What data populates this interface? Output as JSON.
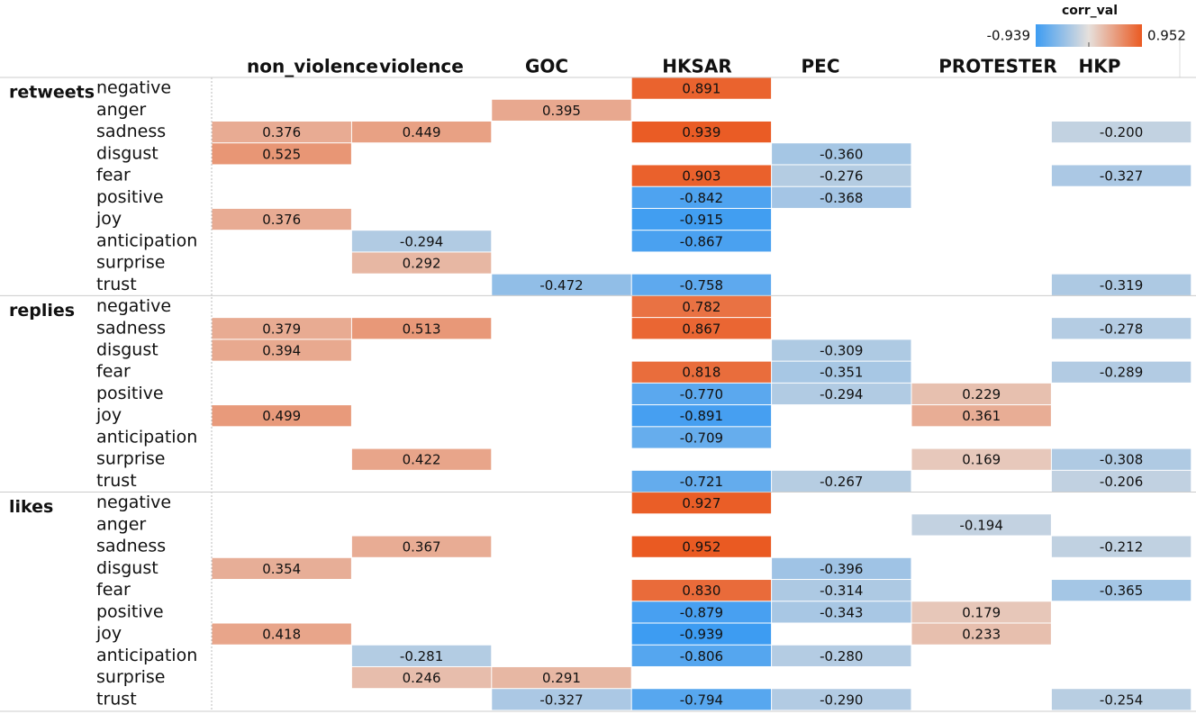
{
  "chart_data": {
    "type": "heatmap",
    "legend_title": "corr_val",
    "color_range": [
      -0.939,
      0.952
    ],
    "colormap": [
      "#3d9cf2",
      "#e6e0dc",
      "#ea5a22"
    ],
    "columns": [
      "non_violence",
      "violence",
      "GOC",
      "HKSAR",
      "PEC",
      "PROTESTER",
      "HKP"
    ],
    "groups": [
      {
        "name": "retweets",
        "rows": [
          {
            "label": "negative",
            "values": [
              null,
              null,
              null,
              0.891,
              null,
              null,
              null
            ],
            "value_labels": [
              null,
              null,
              null,
              "0.891",
              null,
              null,
              null
            ]
          },
          {
            "label": "anger",
            "values": [
              null,
              null,
              0.395,
              null,
              null,
              null,
              null
            ],
            "value_labels": [
              null,
              null,
              "0.395",
              null,
              null,
              null,
              null
            ]
          },
          {
            "label": "sadness",
            "values": [
              0.376,
              0.449,
              null,
              0.939,
              null,
              null,
              -0.2
            ],
            "value_labels": [
              "0.376",
              "0.449",
              null,
              "0.939",
              null,
              null,
              "-0.200"
            ]
          },
          {
            "label": "disgust",
            "values": [
              0.525,
              null,
              null,
              null,
              -0.36,
              null,
              null
            ],
            "value_labels": [
              "0.525",
              null,
              null,
              null,
              "-0.360",
              null,
              null
            ]
          },
          {
            "label": "fear",
            "values": [
              null,
              null,
              null,
              0.903,
              -0.276,
              null,
              -0.327
            ],
            "value_labels": [
              null,
              null,
              null,
              "0.903",
              "-0.276",
              null,
              "-0.327"
            ]
          },
          {
            "label": "positive",
            "values": [
              null,
              null,
              null,
              -0.842,
              -0.368,
              null,
              null
            ],
            "value_labels": [
              null,
              null,
              null,
              "-0.842",
              "-0.368",
              null,
              null
            ]
          },
          {
            "label": "joy",
            "values": [
              0.376,
              null,
              null,
              -0.915,
              null,
              null,
              null
            ],
            "value_labels": [
              "0.376",
              null,
              null,
              "-0.915",
              null,
              null,
              null
            ]
          },
          {
            "label": "anticipation",
            "values": [
              null,
              -0.294,
              null,
              -0.867,
              null,
              null,
              null
            ],
            "value_labels": [
              null,
              "-0.294",
              null,
              "-0.867",
              null,
              null,
              null
            ]
          },
          {
            "label": "surprise",
            "values": [
              null,
              0.292,
              null,
              null,
              null,
              null,
              null
            ],
            "value_labels": [
              null,
              "0.292",
              null,
              null,
              null,
              null,
              null
            ]
          },
          {
            "label": "trust",
            "values": [
              null,
              null,
              -0.472,
              -0.758,
              null,
              null,
              -0.319
            ],
            "value_labels": [
              null,
              null,
              "-0.472",
              "-0.758",
              null,
              null,
              "-0.319"
            ]
          }
        ]
      },
      {
        "name": "replies",
        "rows": [
          {
            "label": "negative",
            "values": [
              null,
              null,
              null,
              0.782,
              null,
              null,
              null
            ],
            "value_labels": [
              null,
              null,
              null,
              "0.782",
              null,
              null,
              null
            ]
          },
          {
            "label": "sadness",
            "values": [
              0.379,
              0.513,
              null,
              0.867,
              null,
              null,
              -0.278
            ],
            "value_labels": [
              "0.379",
              "0.513",
              null,
              "0.867",
              null,
              null,
              "-0.278"
            ]
          },
          {
            "label": "disgust",
            "values": [
              0.394,
              null,
              null,
              null,
              -0.309,
              null,
              null
            ],
            "value_labels": [
              "0.394",
              null,
              null,
              null,
              "-0.309",
              null,
              null
            ]
          },
          {
            "label": "fear",
            "values": [
              null,
              null,
              null,
              0.818,
              -0.351,
              null,
              -0.289
            ],
            "value_labels": [
              null,
              null,
              null,
              "0.818",
              "-0.351",
              null,
              "-0.289"
            ]
          },
          {
            "label": "positive",
            "values": [
              null,
              null,
              null,
              -0.77,
              -0.294,
              0.229,
              null
            ],
            "value_labels": [
              null,
              null,
              null,
              "-0.770",
              "-0.294",
              "0.229",
              null
            ]
          },
          {
            "label": "joy",
            "values": [
              0.499,
              null,
              null,
              -0.891,
              null,
              0.361,
              null
            ],
            "value_labels": [
              "0.499",
              null,
              null,
              "-0.891",
              null,
              "0.361",
              null
            ]
          },
          {
            "label": "anticipation",
            "values": [
              null,
              null,
              null,
              -0.709,
              null,
              null,
              null
            ],
            "value_labels": [
              null,
              null,
              null,
              "-0.709",
              null,
              null,
              null
            ]
          },
          {
            "label": "surprise",
            "values": [
              null,
              0.422,
              null,
              null,
              null,
              0.169,
              -0.308
            ],
            "value_labels": [
              null,
              "0.422",
              null,
              null,
              null,
              "0.169",
              "-0.308"
            ]
          },
          {
            "label": "trust",
            "values": [
              null,
              null,
              null,
              -0.721,
              -0.267,
              null,
              -0.206
            ],
            "value_labels": [
              null,
              null,
              null,
              "-0.721",
              "-0.267",
              null,
              "-0.206"
            ]
          }
        ]
      },
      {
        "name": "likes",
        "rows": [
          {
            "label": "negative",
            "values": [
              null,
              null,
              null,
              0.927,
              null,
              null,
              null
            ],
            "value_labels": [
              null,
              null,
              null,
              "0.927",
              null,
              null,
              null
            ]
          },
          {
            "label": "anger",
            "values": [
              null,
              null,
              null,
              null,
              null,
              -0.194,
              null
            ],
            "value_labels": [
              null,
              null,
              null,
              null,
              null,
              "-0.194",
              null
            ]
          },
          {
            "label": "sadness",
            "values": [
              null,
              0.367,
              null,
              0.952,
              null,
              null,
              -0.212
            ],
            "value_labels": [
              null,
              "0.367",
              null,
              "0.952",
              null,
              null,
              "-0.212"
            ]
          },
          {
            "label": "disgust",
            "values": [
              0.354,
              null,
              null,
              null,
              -0.396,
              null,
              null
            ],
            "value_labels": [
              "0.354",
              null,
              null,
              null,
              "-0.396",
              null,
              null
            ]
          },
          {
            "label": "fear",
            "values": [
              null,
              null,
              null,
              0.83,
              -0.314,
              null,
              -0.365
            ],
            "value_labels": [
              null,
              null,
              null,
              "0.830",
              "-0.314",
              null,
              "-0.365"
            ]
          },
          {
            "label": "positive",
            "values": [
              null,
              null,
              null,
              -0.879,
              -0.343,
              0.179,
              null
            ],
            "value_labels": [
              null,
              null,
              null,
              "-0.879",
              "-0.343",
              "0.179",
              null
            ]
          },
          {
            "label": "joy",
            "values": [
              0.418,
              null,
              null,
              -0.939,
              null,
              0.233,
              null
            ],
            "value_labels": [
              "0.418",
              null,
              null,
              "-0.939",
              null,
              "0.233",
              null
            ]
          },
          {
            "label": "anticipation",
            "values": [
              null,
              -0.281,
              null,
              -0.806,
              -0.28,
              null,
              null
            ],
            "value_labels": [
              null,
              "-0.281",
              null,
              "-0.806",
              "-0.280",
              null,
              null
            ]
          },
          {
            "label": "surprise",
            "values": [
              null,
              0.246,
              0.291,
              null,
              null,
              null,
              null
            ],
            "value_labels": [
              null,
              "0.246",
              "0.291",
              null,
              null,
              null,
              null
            ]
          },
          {
            "label": "trust",
            "values": [
              null,
              null,
              -0.327,
              -0.794,
              -0.29,
              null,
              -0.254
            ],
            "value_labels": [
              null,
              null,
              "-0.327",
              "-0.794",
              "-0.290",
              null,
              "-0.254"
            ]
          }
        ]
      }
    ]
  }
}
